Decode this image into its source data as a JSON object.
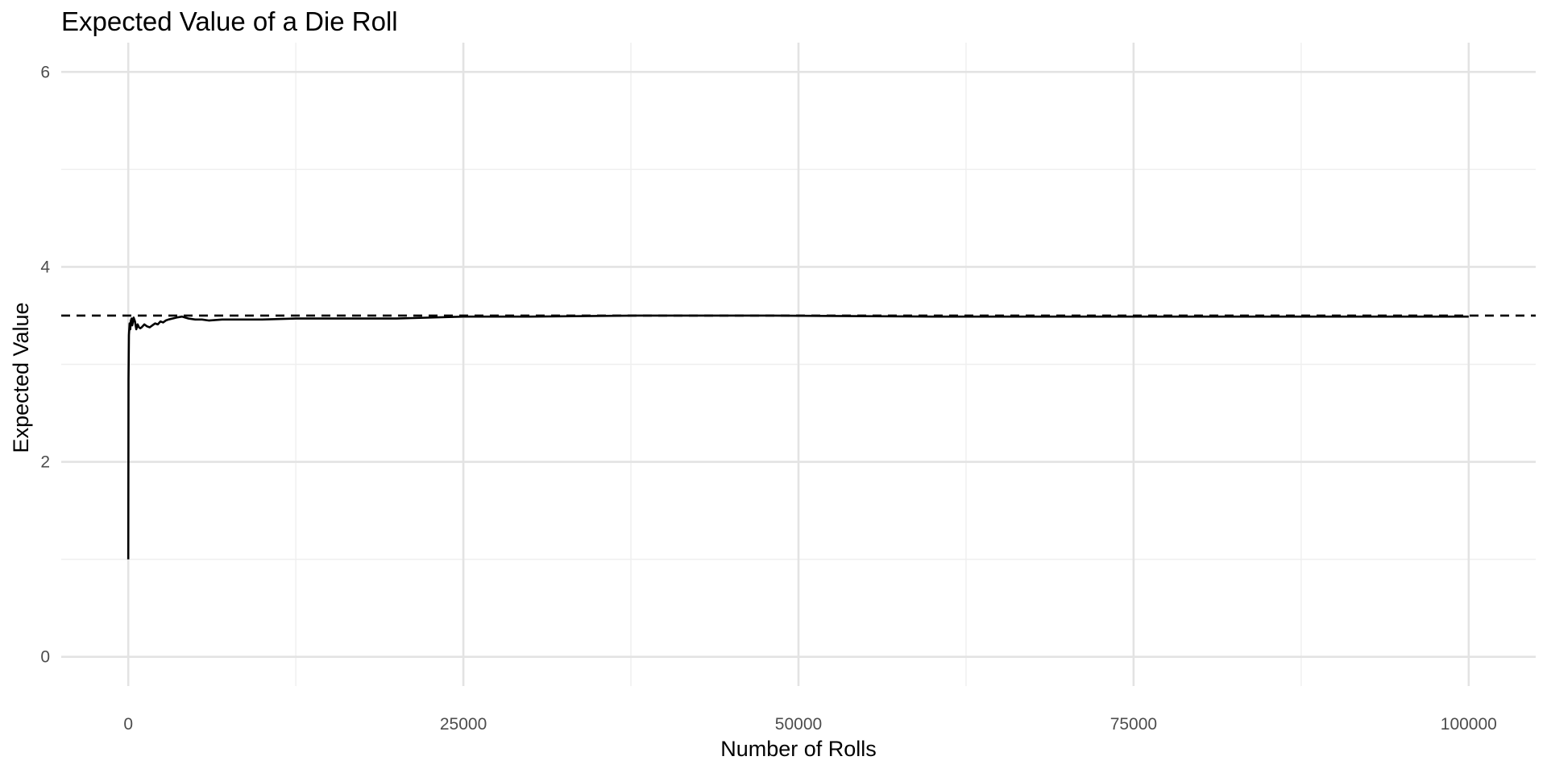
{
  "chart_data": {
    "type": "line",
    "title": "Expected Value of a Die Roll",
    "xlabel": "Number of Rolls",
    "ylabel": "Expected Value",
    "xlim": [
      -5000,
      105000
    ],
    "ylim": [
      -0.3,
      6.3
    ],
    "x_ticks": [
      0,
      25000,
      50000,
      75000,
      100000
    ],
    "x_tick_labels": [
      "0",
      "25000",
      "50000",
      "75000",
      "100000"
    ],
    "x_minor_ticks": [
      12500,
      37500,
      62500,
      87500
    ],
    "y_ticks": [
      0,
      2,
      4,
      6
    ],
    "y_tick_labels": [
      "0",
      "2",
      "4",
      "6"
    ],
    "y_minor_ticks": [
      1,
      3,
      5
    ],
    "grid": true,
    "series": [
      {
        "color": "#000000",
        "x": [
          1,
          20,
          50,
          100,
          150,
          200,
          250,
          300,
          400,
          500,
          600,
          700,
          800,
          900,
          1000,
          1200,
          1400,
          1600,
          1800,
          2000,
          2200,
          2400,
          2600,
          2800,
          3000,
          3300,
          3600,
          4000,
          4500,
          5000,
          5500,
          6000,
          7000,
          8000,
          10000,
          12500,
          15000,
          20000,
          25000,
          30000,
          38000,
          48000,
          60000,
          75000,
          100000
        ],
        "y": [
          1.0,
          2.85,
          3.3,
          3.42,
          3.36,
          3.45,
          3.47,
          3.4,
          3.48,
          3.44,
          3.36,
          3.41,
          3.38,
          3.37,
          3.38,
          3.41,
          3.39,
          3.38,
          3.4,
          3.42,
          3.41,
          3.44,
          3.43,
          3.45,
          3.46,
          3.47,
          3.48,
          3.49,
          3.47,
          3.46,
          3.46,
          3.45,
          3.46,
          3.46,
          3.46,
          3.47,
          3.47,
          3.47,
          3.49,
          3.49,
          3.5,
          3.5,
          3.49,
          3.49,
          3.49
        ]
      }
    ],
    "reference_line": {
      "y": 3.5,
      "style": "dashed",
      "color": "#000000"
    }
  }
}
